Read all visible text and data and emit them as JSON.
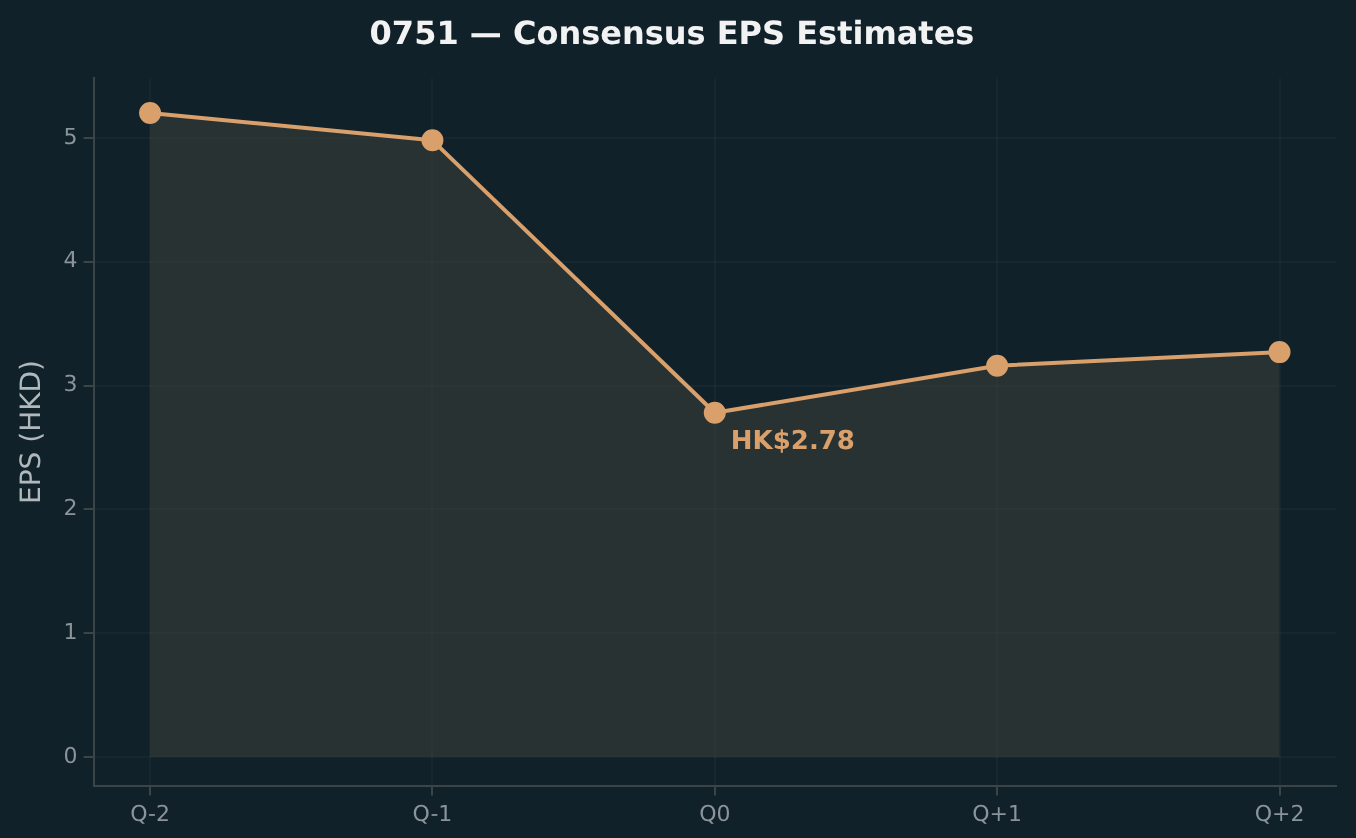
{
  "chart_data": {
    "type": "area",
    "title": "0751 — Consensus EPS Estimates",
    "ylabel": "EPS (HKD)",
    "categories": [
      "Q-2",
      "Q-1",
      "Q0",
      "Q+1",
      "Q+2"
    ],
    "series": [
      {
        "color": "#d9a06b",
        "values": [
          5.2,
          4.98,
          2.78,
          3.16,
          3.27
        ]
      }
    ],
    "annotations": [
      {
        "text": "HK$2.78",
        "x": "Q0",
        "y": 2.78
      }
    ],
    "ylim": [
      -0.23,
      5.48
    ],
    "yticks": [
      0,
      1,
      2,
      3,
      4,
      5
    ],
    "grid": true,
    "marker": "circle",
    "line_style": "solid",
    "legend": false
  }
}
